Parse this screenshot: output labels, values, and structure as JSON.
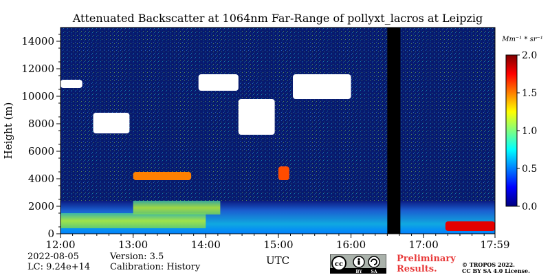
{
  "chart_data": {
    "type": "heatmap",
    "title": "Attenuated Backscatter at 1064nm Far-Range of pollyxt_lacros at Leipzig",
    "xlabel": "UTC",
    "ylabel": "Height (m)",
    "x_tick_labels": [
      "12:00",
      "13:00",
      "14:00",
      "15:00",
      "16:00",
      "17:00",
      "17:59"
    ],
    "x_tick_hours": [
      12.0,
      13.0,
      14.0,
      15.0,
      16.0,
      17.0,
      17.983
    ],
    "x_range_hours": [
      12.0,
      17.983
    ],
    "y_ticks": [
      0,
      2000,
      4000,
      6000,
      8000,
      10000,
      12000,
      14000
    ],
    "y_tick_labels": [
      "0",
      "2000",
      "4000",
      "6000",
      "8000",
      "10000",
      "12000",
      "14000"
    ],
    "ylim": [
      0,
      15000
    ],
    "colorbar": {
      "unit": "Mm⁻¹ * sr⁻¹",
      "range": [
        0.0,
        2.0
      ],
      "ticks": [
        0.0,
        0.5,
        1.0,
        1.5,
        2.0
      ],
      "tick_labels": [
        "0.0",
        "0.5",
        "1.0",
        "1.5",
        "2.0"
      ],
      "colormap": "jet"
    },
    "regions": [
      {
        "kind": "boundary_layer",
        "t0": 12.0,
        "t1": 17.983,
        "h0": 0,
        "h1": 2400,
        "value": 0.55
      },
      {
        "kind": "aerosol_layer",
        "t0": 12.0,
        "t1": 14.0,
        "h0": 400,
        "h1": 1500,
        "value": 1.0
      },
      {
        "kind": "aerosol_layer",
        "t0": 13.0,
        "t1": 14.2,
        "h0": 1400,
        "h1": 2400,
        "value": 0.9
      },
      {
        "kind": "cloud",
        "t0": 12.45,
        "t1": 12.95,
        "h0": 7300,
        "h1": 8800,
        "value": 2.0
      },
      {
        "kind": "cloud",
        "t0": 12.0,
        "t1": 12.3,
        "h0": 10600,
        "h1": 11200,
        "value": 2.0
      },
      {
        "kind": "cloud",
        "t0": 13.9,
        "t1": 14.45,
        "h0": 10400,
        "h1": 11600,
        "value": 2.0
      },
      {
        "kind": "cloud",
        "t0": 14.45,
        "t1": 14.95,
        "h0": 7200,
        "h1": 9800,
        "value": 2.0
      },
      {
        "kind": "cloud",
        "t0": 15.2,
        "t1": 16.0,
        "h0": 9800,
        "h1": 11600,
        "value": 2.0
      },
      {
        "kind": "cloud",
        "t0": 13.0,
        "t1": 13.8,
        "h0": 3900,
        "h1": 4500,
        "value": 1.5
      },
      {
        "kind": "cloud",
        "t0": 15.0,
        "t1": 15.15,
        "h0": 3900,
        "h1": 4900,
        "value": 1.6
      },
      {
        "kind": "cloud",
        "t0": 17.3,
        "t1": 17.983,
        "h0": 200,
        "h1": 900,
        "value": 1.8
      },
      {
        "kind": "no_data",
        "t0": 16.5,
        "t1": 16.68,
        "h0": 0,
        "h1": 15000,
        "value": null
      }
    ]
  },
  "meta": {
    "date": "2022-08-05",
    "lc": "LC: 9.24e+14",
    "version": "Version: 3.5",
    "calibration": "Calibration: History",
    "preliminary_line1": "Preliminary",
    "preliminary_line2": "Results.",
    "copyright_line1": "© TROPOS 2022.",
    "copyright_line2": "CC BY SA 4.0 License.",
    "badge_cc": "cc",
    "badge_by": "BY",
    "badge_sa": "SA"
  }
}
